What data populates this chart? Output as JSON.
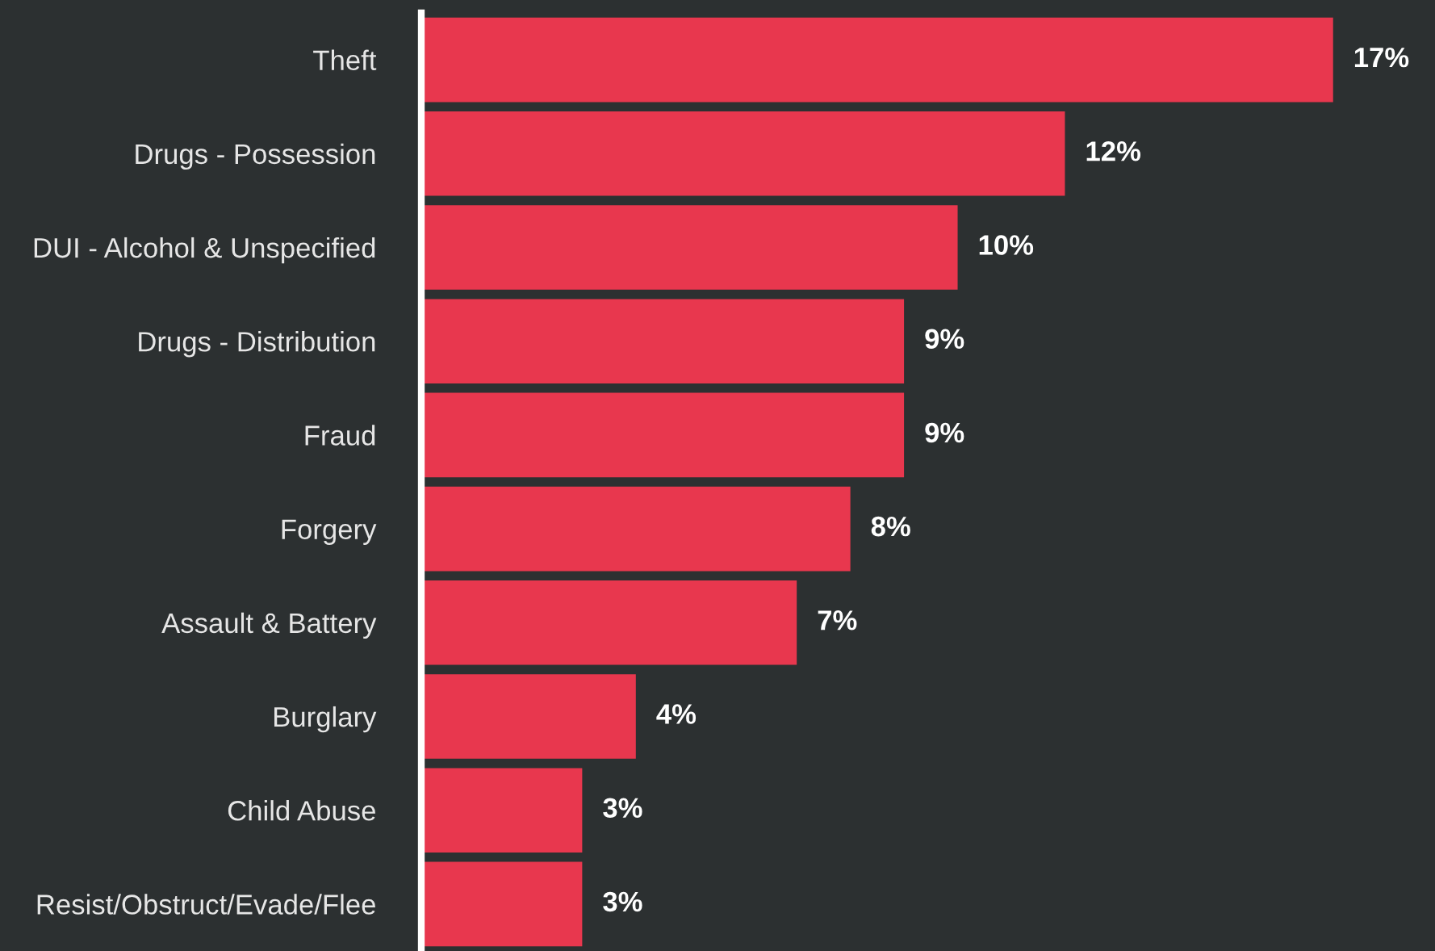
{
  "chart_data": {
    "type": "bar",
    "orientation": "horizontal",
    "categories": [
      "Theft",
      "Drugs - Possession",
      "DUI - Alcohol & Unspecified",
      "Drugs - Distribution",
      "Fraud",
      "Forgery",
      "Assault & Battery",
      "Burglary",
      "Child Abuse",
      "Resist/Obstruct/Evade/Flee"
    ],
    "values": [
      17,
      12,
      10,
      9,
      9,
      8,
      7,
      4,
      3,
      3
    ],
    "value_labels": [
      "17%",
      "12%",
      "10%",
      "9%",
      "9%",
      "8%",
      "7%",
      "4%",
      "3%",
      "3%"
    ],
    "color": "#e8374e",
    "xlim": [
      0,
      18.9
    ],
    "tick_labels": "y",
    "grid": false,
    "legend": false
  }
}
